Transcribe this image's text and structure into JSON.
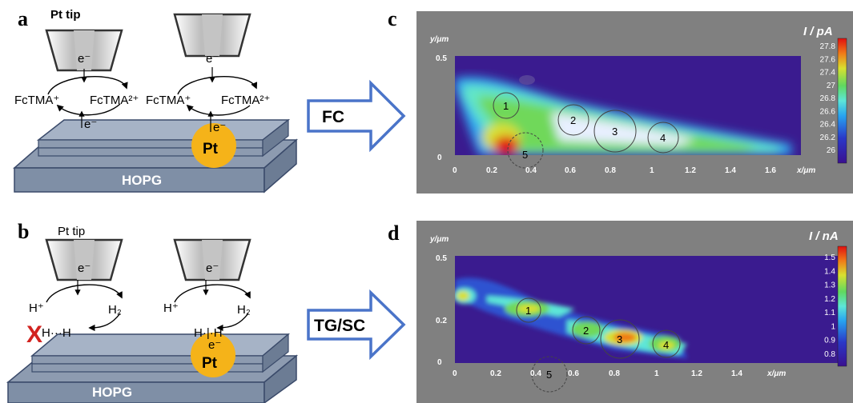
{
  "panels": {
    "a": {
      "label": "a",
      "tip_label": "Pt tip",
      "electron": "e⁻",
      "species_left_1": "FcTMA⁺",
      "species_right_1": "FcTMA²⁺",
      "species_left_2": "FcTMA⁺",
      "species_right_2": "FcTMA²⁺",
      "substrate_label": "HOPG",
      "particle_label": "Pt"
    },
    "b": {
      "label": "b",
      "tip_label": "Pt tip",
      "electron": "e⁻",
      "proton": "H⁺",
      "hydrogen": "H₂",
      "blocked_mark": "X",
      "adsorbed_left": "H···H",
      "adsorbed_right": "H·|·H",
      "substrate_label": "HOPG",
      "particle_label": "Pt"
    },
    "c": {
      "label": "c",
      "arrow_label": "FC",
      "y_axis_label": "y/μm",
      "x_axis_label": "x/μm",
      "colorbar_title": "I / pA",
      "colorbar_ticks": [
        "27.8",
        "27.6",
        "27.4",
        "27",
        "26.8",
        "26.6",
        "26.4",
        "26.2",
        "26"
      ],
      "x_ticks": [
        "0",
        "0.2",
        "0.4",
        "0.6",
        "0.8",
        "1",
        "1.2",
        "1.4",
        "1.6"
      ],
      "y_ticks": [
        "0.5",
        "0"
      ],
      "regions": [
        "1",
        "2",
        "3",
        "4",
        "5"
      ]
    },
    "d": {
      "label": "d",
      "arrow_label": "TG/SC",
      "y_axis_label": "y/μm",
      "x_axis_label": "x/μm",
      "colorbar_title": "I / nA",
      "colorbar_ticks": [
        "1.5",
        "1.4",
        "1.3",
        "1.2",
        "1.1",
        "1",
        "0.9",
        "0.8"
      ],
      "x_ticks": [
        "0",
        "0.2",
        "0.4",
        "0.6",
        "0.8",
        "1",
        "1.2",
        "1.4"
      ],
      "y_ticks": [
        "0.5",
        "0.2",
        "0"
      ],
      "regions": [
        "1",
        "2",
        "3",
        "4",
        "5"
      ]
    }
  },
  "colors": {
    "arrow_fill": "#ffffff",
    "arrow_stroke": "#4a74c9",
    "particle": "#f5b319",
    "blocked_mark": "#d2231f",
    "hopg_layer": "#7f8fa6",
    "map_background": "#808080",
    "map_plot": "#3a1b8f"
  }
}
